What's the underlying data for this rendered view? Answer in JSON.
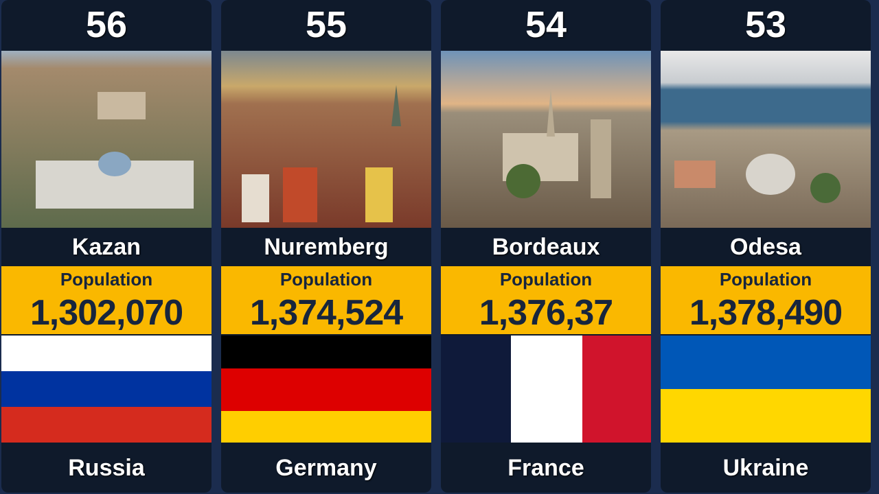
{
  "cards": [
    {
      "rank": "56",
      "city": "Kazan",
      "label": "Population",
      "population": "1,302,070",
      "country": "Russia"
    },
    {
      "rank": "55",
      "city": "Nuremberg",
      "label": "Population",
      "population": "1,374,524",
      "country": "Germany"
    },
    {
      "rank": "54",
      "city": "Bordeaux",
      "label": "Population",
      "population": "1,376,37",
      "country": "France"
    },
    {
      "rank": "53",
      "city": "Odesa",
      "label": "Population",
      "population": "1,378,490",
      "country": "Ukraine"
    }
  ]
}
